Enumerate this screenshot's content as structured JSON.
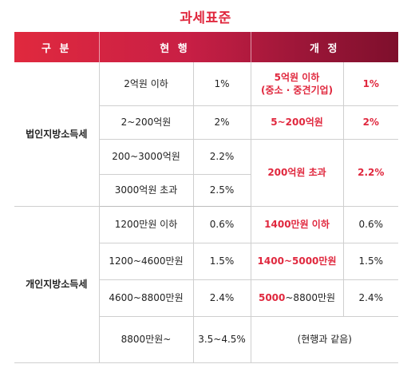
{
  "title": "과세표준",
  "header": {
    "col1": "구 분",
    "col2": "현 행",
    "col3": "개 정"
  },
  "corp": {
    "label": "법인지방소득세",
    "rows": [
      {
        "cur_range": "2억원 이하",
        "cur_rate": "1%",
        "new_range_line1": "5억원 이하",
        "new_range_line2": "(중소 · 중견기업)",
        "new_rate": "1%"
      },
      {
        "cur_range": "2~200억원",
        "cur_rate": "2%",
        "new_range": "5~200억원",
        "new_rate": "2%"
      },
      {
        "cur_range": "200~3000억원",
        "cur_rate": "2.2%",
        "new_range": "200억원 초과",
        "new_rate": "2.2%"
      },
      {
        "cur_range": "3000억원 초과",
        "cur_rate": "2.5%"
      }
    ]
  },
  "indiv": {
    "label": "개인지방소득세",
    "rows": [
      {
        "cur_range": "1200만원 이하",
        "cur_rate": "0.6%",
        "new_range": "1400만원 이하",
        "new_rate": "0.6%"
      },
      {
        "cur_range": "1200~4600만원",
        "cur_rate": "1.5%",
        "new_range": "1400~5000만원",
        "new_rate": "1.5%"
      },
      {
        "cur_range": "4600~8800만원",
        "cur_rate": "2.4%",
        "new_range_red": "5000",
        "new_range_rest": "~8800만원",
        "new_rate": "2.4%"
      },
      {
        "cur_range": "8800만원~",
        "cur_rate": "3.5~4.5%",
        "new_same": "(현행과 같음)"
      }
    ]
  },
  "colors": {
    "accent": "#e0283e",
    "header_start": "#e0293e",
    "header_end": "#7e0f2c"
  }
}
